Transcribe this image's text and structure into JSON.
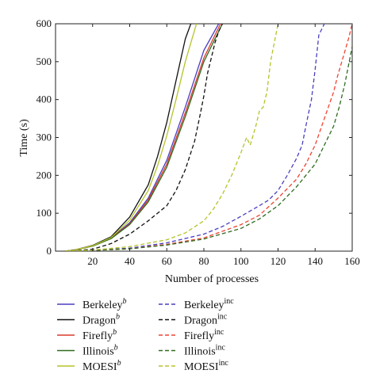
{
  "chart_data": {
    "type": "line",
    "xlabel": "Number of processes",
    "ylabel": "Time (s)",
    "xlim": [
      0,
      160
    ],
    "ylim": [
      0,
      600
    ],
    "xticks": [
      20,
      40,
      60,
      80,
      100,
      120,
      140,
      160
    ],
    "yticks": [
      0,
      100,
      200,
      300,
      400,
      500,
      600
    ],
    "grid": false,
    "legend_position": "bottom",
    "series": [
      {
        "name": "Berkeley",
        "sup": "b",
        "supItalic": true,
        "color": "#4b3fbf",
        "dash": false,
        "x": [
          5,
          10,
          20,
          30,
          40,
          50,
          60,
          70,
          80,
          88
        ],
        "y": [
          0,
          3,
          14,
          35,
          75,
          140,
          240,
          380,
          530,
          600
        ]
      },
      {
        "name": "Dragon",
        "sup": "b",
        "supItalic": true,
        "color": "#111111",
        "dash": false,
        "x": [
          5,
          10,
          20,
          30,
          40,
          50,
          55,
          60,
          65,
          70,
          73
        ],
        "y": [
          0,
          3,
          15,
          38,
          90,
          175,
          250,
          340,
          450,
          560,
          600
        ]
      },
      {
        "name": "Firefly",
        "sup": "b",
        "supItalic": true,
        "color": "#d93a2b",
        "dash": false,
        "x": [
          5,
          10,
          20,
          30,
          40,
          50,
          60,
          70,
          80,
          89
        ],
        "y": [
          0,
          3,
          14,
          34,
          72,
          135,
          230,
          365,
          510,
          600
        ]
      },
      {
        "name": "Illinois",
        "sup": "b",
        "supItalic": true,
        "color": "#2f6b1f",
        "dash": false,
        "x": [
          5,
          10,
          20,
          30,
          40,
          50,
          60,
          70,
          80,
          90
        ],
        "y": [
          0,
          3,
          13,
          33,
          70,
          130,
          222,
          355,
          500,
          600
        ]
      },
      {
        "name": "MOESI",
        "sup": "b",
        "supItalic": true,
        "color": "#b5c42a",
        "dash": false,
        "x": [
          5,
          10,
          20,
          30,
          40,
          50,
          55,
          60,
          65,
          70,
          76
        ],
        "y": [
          0,
          3,
          14,
          36,
          82,
          160,
          225,
          305,
          400,
          500,
          600
        ]
      },
      {
        "name": "Berkeley",
        "sup": "inc",
        "supItalic": false,
        "color": "#4b3fbf",
        "dash": true,
        "x": [
          5,
          20,
          40,
          60,
          80,
          90,
          100,
          110,
          115,
          120,
          125,
          130,
          133,
          135,
          138,
          140,
          142,
          145
        ],
        "y": [
          0,
          2,
          8,
          22,
          45,
          65,
          92,
          120,
          135,
          160,
          200,
          245,
          280,
          330,
          400,
          480,
          570,
          600
        ]
      },
      {
        "name": "Dragon",
        "sup": "inc",
        "supItalic": false,
        "color": "#111111",
        "dash": true,
        "x": [
          5,
          20,
          30,
          40,
          50,
          60,
          65,
          70,
          75,
          78,
          80,
          82,
          84,
          86,
          88,
          90
        ],
        "y": [
          0,
          5,
          20,
          45,
          80,
          120,
          160,
          215,
          290,
          360,
          410,
          470,
          510,
          550,
          580,
          600
        ]
      },
      {
        "name": "Firefly",
        "sup": "inc",
        "supItalic": false,
        "color": "#ee4433",
        "dash": true,
        "x": [
          5,
          20,
          40,
          60,
          80,
          100,
          110,
          120,
          130,
          135,
          140,
          145,
          150,
          152,
          155,
          158,
          160
        ],
        "y": [
          0,
          2,
          6,
          18,
          35,
          70,
          95,
          140,
          190,
          230,
          280,
          350,
          420,
          460,
          510,
          560,
          600
        ]
      },
      {
        "name": "Illinois",
        "sup": "inc",
        "supItalic": false,
        "color": "#2f6b1f",
        "dash": true,
        "x": [
          5,
          20,
          40,
          60,
          80,
          100,
          110,
          120,
          130,
          140,
          145,
          150,
          153,
          156,
          158,
          160
        ],
        "y": [
          0,
          2,
          6,
          16,
          32,
          60,
          85,
          120,
          170,
          230,
          280,
          330,
          380,
          440,
          490,
          540
        ]
      },
      {
        "name": "MOESI",
        "sup": "inc",
        "supItalic": false,
        "color": "#b5c42a",
        "dash": true,
        "x": [
          5,
          20,
          40,
          60,
          70,
          80,
          85,
          90,
          95,
          100,
          103,
          105,
          108,
          110,
          112,
          114,
          116,
          118,
          120
        ],
        "y": [
          0,
          3,
          12,
          30,
          48,
          80,
          110,
          150,
          200,
          260,
          300,
          280,
          330,
          370,
          380,
          420,
          500,
          550,
          600
        ]
      }
    ]
  }
}
